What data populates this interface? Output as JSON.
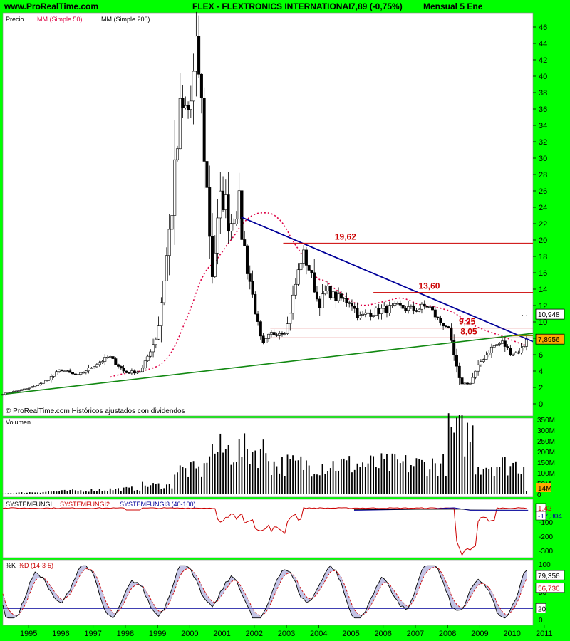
{
  "header": {
    "site": "www.ProRealTime.com",
    "instrument": "FLEX - FLEXTRONICS INTERNATIONAL",
    "quote": "7,89 (-0,75%)",
    "period": "Mensual  5 Ene"
  },
  "colors": {
    "background": "#00ff00",
    "panel": "#ffffff",
    "candle_up": "#ffffff",
    "candle_down": "#000000",
    "ma50": "#dd0044",
    "downtrend": "#000099",
    "uptrend": "#118811",
    "levels": "#cc0000",
    "price_badge": "#ffaa00",
    "stoch_fill_up": "#8888cc",
    "stoch_fill_down": "#ffaaaa"
  },
  "chart_data": [
    {
      "type": "candlestick",
      "panel": "price",
      "labels": [
        "Precio",
        "MM (Simple 50)",
        "MM (Simple 200)"
      ],
      "ylim": [
        0,
        47
      ],
      "yticks": [
        0,
        2,
        4,
        6,
        8,
        10,
        12,
        14,
        16,
        18,
        20,
        22,
        24,
        26,
        28,
        30,
        32,
        34,
        36,
        38,
        40,
        42,
        44,
        46
      ],
      "x_years": [
        "1995",
        "1996",
        "1997",
        "1998",
        "1999",
        "2000",
        "2001",
        "2002",
        "2003",
        "2004",
        "2005",
        "2006",
        "2007",
        "2008",
        "2009",
        "2010",
        "2011"
      ],
      "close_anchors": [
        [
          1994.7,
          1.2
        ],
        [
          1995.5,
          1.9
        ],
        [
          1996.0,
          2.7
        ],
        [
          1996.5,
          4.2
        ],
        [
          1997.0,
          3.4
        ],
        [
          1997.5,
          4.6
        ],
        [
          1998.0,
          5.8
        ],
        [
          1998.5,
          3.8
        ],
        [
          1999.0,
          4.0
        ],
        [
          1999.5,
          8.5
        ],
        [
          1999.9,
          22.0
        ],
        [
          2000.2,
          35.0
        ],
        [
          2000.5,
          36.0
        ],
        [
          2000.75,
          43.0
        ],
        [
          2001.0,
          28.0
        ],
        [
          2001.2,
          16.0
        ],
        [
          2001.5,
          26.0
        ],
        [
          2001.75,
          22.0
        ],
        [
          2002.0,
          25.0
        ],
        [
          2002.15,
          20.0
        ],
        [
          2002.5,
          12.0
        ],
        [
          2002.75,
          7.0
        ],
        [
          2003.0,
          8.5
        ],
        [
          2003.5,
          9.0
        ],
        [
          2003.75,
          14.0
        ],
        [
          2004.0,
          18.5
        ],
        [
          2004.25,
          16.0
        ],
        [
          2004.5,
          12.0
        ],
        [
          2004.75,
          14.0
        ],
        [
          2005.0,
          13.0
        ],
        [
          2005.5,
          12.5
        ],
        [
          2005.75,
          10.5
        ],
        [
          2006.0,
          11.0
        ],
        [
          2006.5,
          11.5
        ],
        [
          2007.0,
          11.8
        ],
        [
          2007.5,
          11.5
        ],
        [
          2007.9,
          12.0
        ],
        [
          2008.25,
          10.0
        ],
        [
          2008.5,
          9.5
        ],
        [
          2008.75,
          5.0
        ],
        [
          2008.9,
          2.5
        ],
        [
          2009.2,
          2.5
        ],
        [
          2009.5,
          5.0
        ],
        [
          2009.9,
          7.0
        ],
        [
          2010.2,
          7.5
        ],
        [
          2010.5,
          6.0
        ],
        [
          2010.75,
          6.5
        ],
        [
          2011.0,
          7.89
        ]
      ],
      "annotations": [
        "19,62",
        "13,60",
        "9,25",
        "8,05"
      ],
      "level_values": [
        19.62,
        13.6,
        9.25,
        8.05
      ],
      "axis_badges": [
        "10,948",
        "7,8956"
      ],
      "last_price": 7.89,
      "source": "© ProRealTime.com  Históricos ajustados con dividendos"
    },
    {
      "type": "bar",
      "panel": "volume",
      "label": "Volumen",
      "ylim": [
        0,
        360
      ],
      "yticks": [
        "0",
        "50M",
        "100M",
        "150M",
        "200M",
        "250M",
        "300M",
        "350M"
      ],
      "badge": "14M"
    },
    {
      "type": "line",
      "panel": "systemfungi",
      "labels": [
        "SYSTEMFUNGI",
        "SYSTEMFUNGI2",
        "SYSTEMFUNGI3 (40-100)"
      ],
      "ylim": [
        -350,
        30
      ],
      "yticks": [
        "-100",
        "-200",
        "-300"
      ],
      "badges": [
        "1,42",
        "-17,304"
      ]
    },
    {
      "type": "line",
      "panel": "stochastic",
      "labels": [
        "%K",
        "%D (14-3-5)"
      ],
      "ylim": [
        0,
        100
      ],
      "yticks": [
        "100",
        "50",
        "0"
      ],
      "hlines": [
        80,
        20
      ],
      "badges": [
        "79,356",
        "56,736",
        "20"
      ]
    }
  ]
}
